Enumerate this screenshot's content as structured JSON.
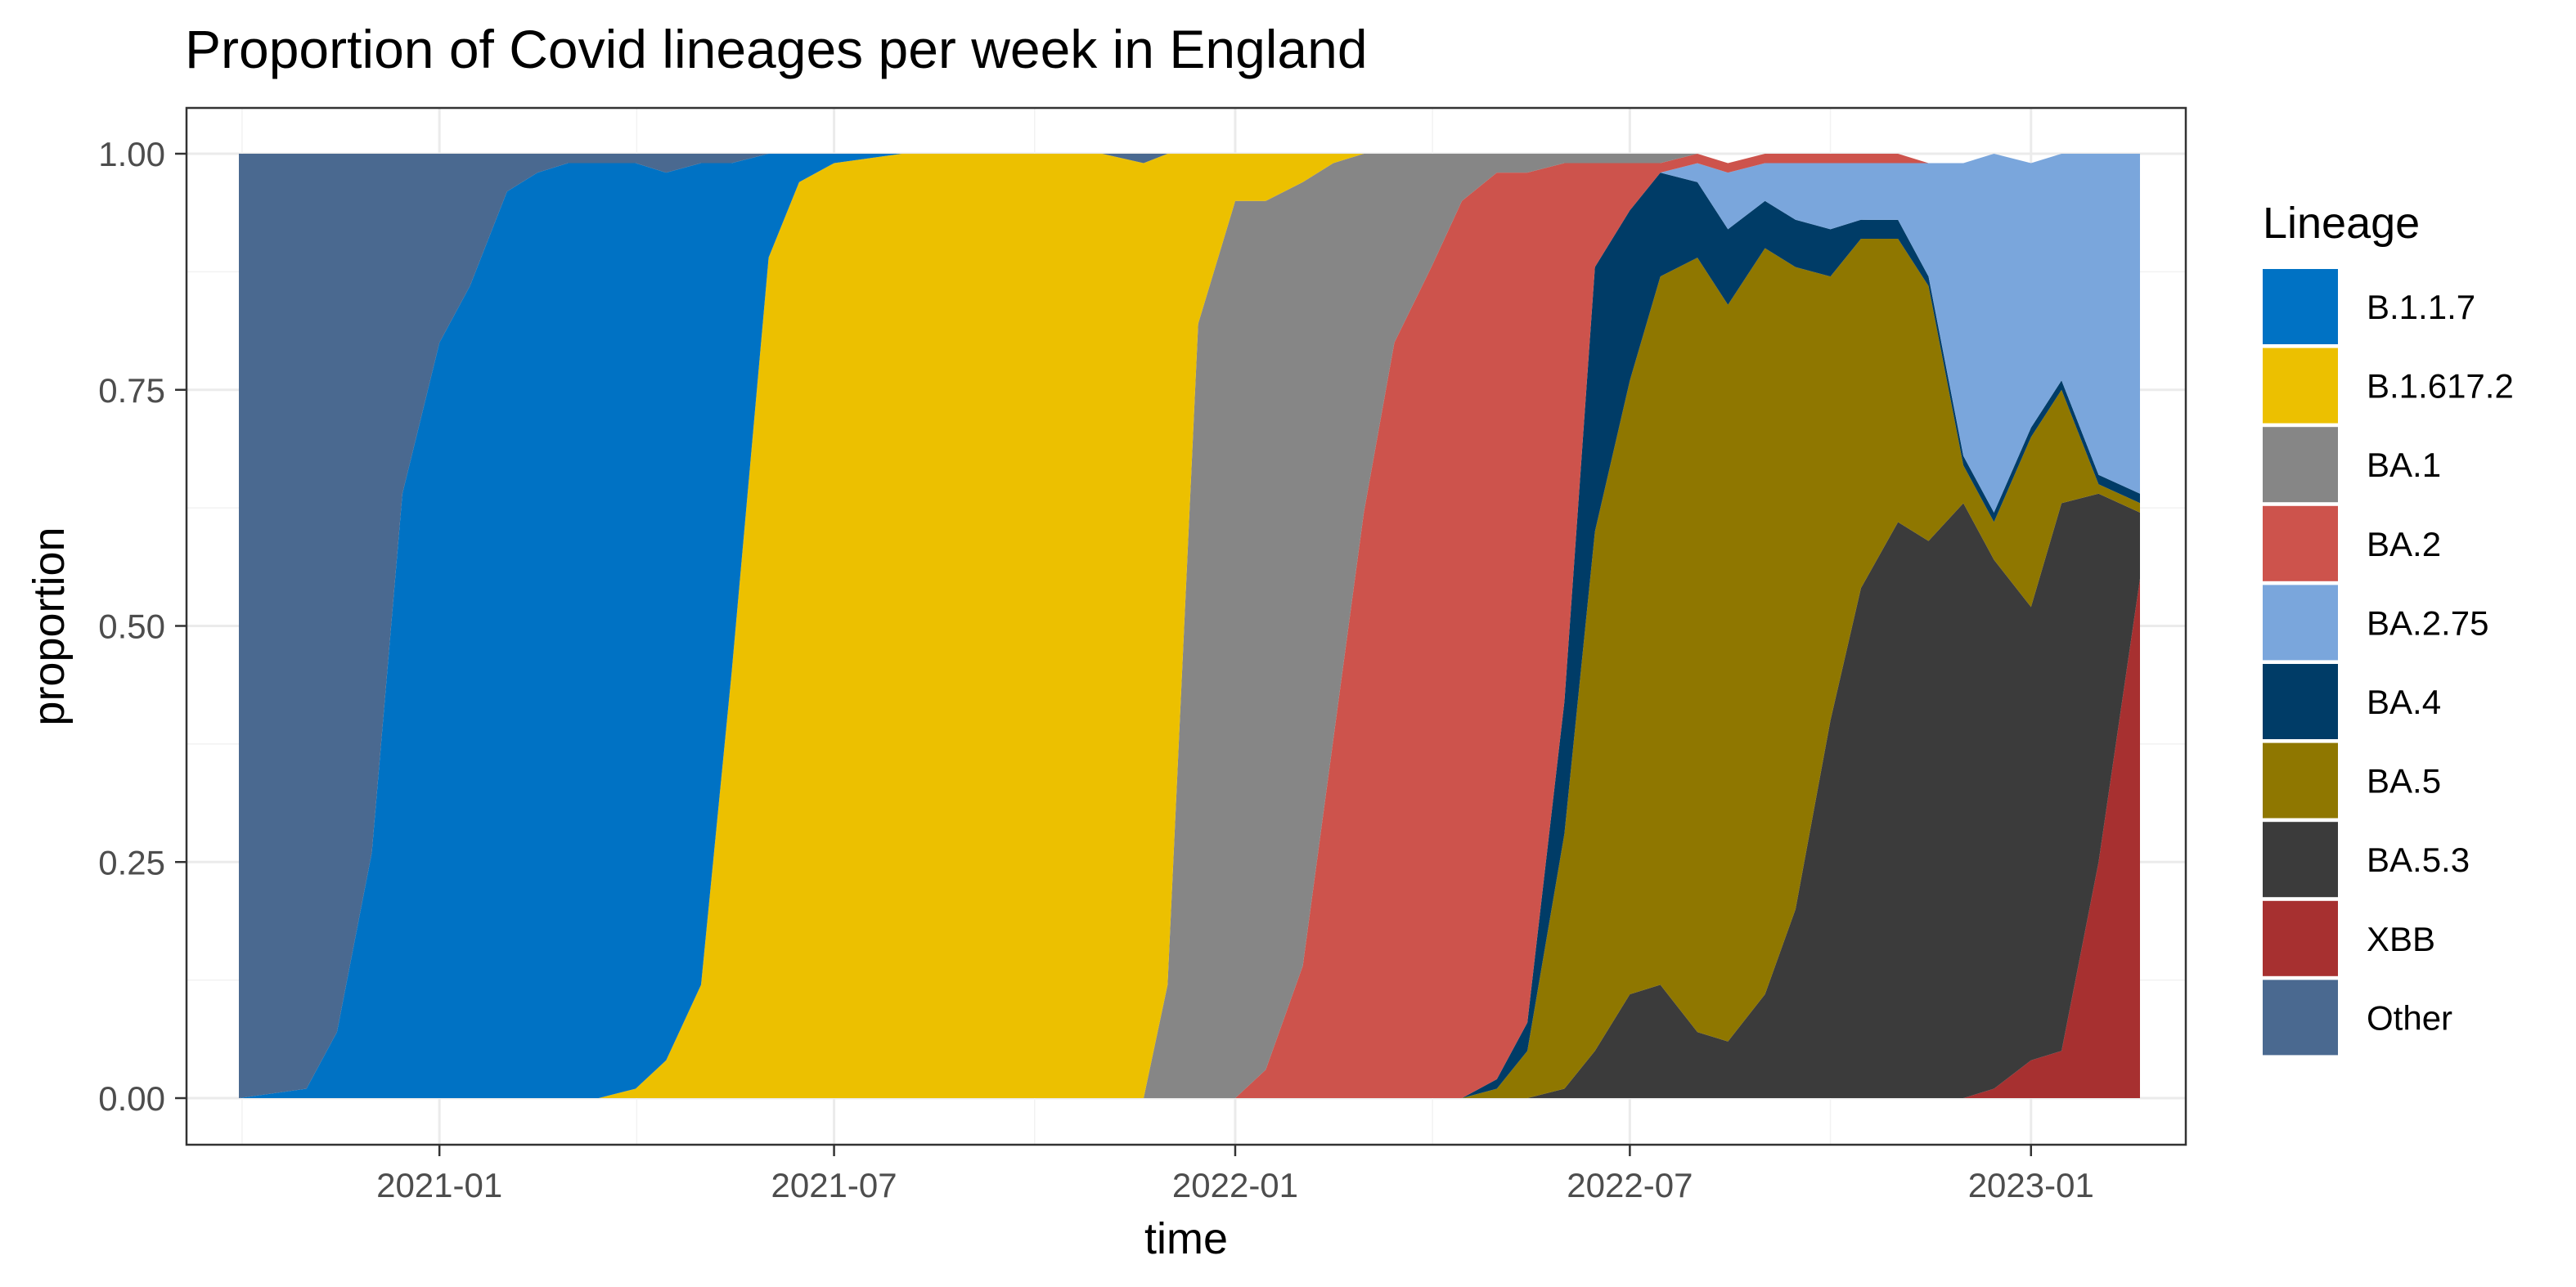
{
  "chart_data": {
    "type": "area",
    "stacked": true,
    "normalized": true,
    "title": "Proportion of Covid lineages per week in England",
    "xlabel": "time",
    "ylabel": "proportion",
    "ylim": [
      0,
      1
    ],
    "xlim": [
      "2020-09-07",
      "2023-03-13"
    ],
    "x_ticks": [
      "2021-01-01",
      "2021-07-01",
      "2022-01-01",
      "2022-07-01",
      "2023-01-01"
    ],
    "x_tick_labels": [
      "2021-01",
      "2021-07",
      "2022-01",
      "2022-07",
      "2023-01"
    ],
    "y_ticks": [
      0,
      0.25,
      0.5,
      0.75,
      1.0
    ],
    "y_tick_labels": [
      "0.00",
      "0.25",
      "0.50",
      "0.75",
      "1.00"
    ],
    "grid": true,
    "legend_title": "Lineage",
    "legend_position": "right",
    "stack_order_bottom_to_top": [
      "XBB",
      "BA.5.3",
      "BA.5",
      "BA.4",
      "BA.2.75",
      "BA.2",
      "BA.1",
      "B.1.617.2",
      "B.1.1.7",
      "Other"
    ],
    "series": [
      {
        "name": "B.1.1.7",
        "color": "#0072c4"
      },
      {
        "name": "B.1.617.2",
        "color": "#ecc000"
      },
      {
        "name": "BA.1",
        "color": "#868686"
      },
      {
        "name": "BA.2",
        "color": "#cd534c"
      },
      {
        "name": "BA.2.75",
        "color": "#7aa6dc"
      },
      {
        "name": "BA.4",
        "color": "#003c67"
      },
      {
        "name": "BA.5",
        "color": "#8f7700"
      },
      {
        "name": "BA.5.3",
        "color": "#3b3b3b"
      },
      {
        "name": "XBB",
        "color": "#a73030"
      },
      {
        "name": "Other",
        "color": "#4a6990"
      }
    ],
    "x": [
      "2020-10-01",
      "2020-11-01",
      "2020-11-15",
      "2020-12-01",
      "2020-12-15",
      "2021-01-01",
      "2021-01-15",
      "2021-02-01",
      "2021-02-15",
      "2021-03-01",
      "2021-03-15",
      "2021-04-01",
      "2021-04-15",
      "2021-05-01",
      "2021-05-15",
      "2021-06-01",
      "2021-06-15",
      "2021-07-01",
      "2021-08-01",
      "2021-09-01",
      "2021-10-01",
      "2021-11-01",
      "2021-11-20",
      "2021-12-01",
      "2021-12-15",
      "2022-01-01",
      "2022-01-15",
      "2022-02-01",
      "2022-02-15",
      "2022-03-01",
      "2022-03-15",
      "2022-04-01",
      "2022-04-15",
      "2022-05-01",
      "2022-05-15",
      "2022-06-01",
      "2022-06-15",
      "2022-07-01",
      "2022-07-15",
      "2022-08-01",
      "2022-08-15",
      "2022-09-01",
      "2022-09-15",
      "2022-10-01",
      "2022-10-15",
      "2022-11-01",
      "2022-11-15",
      "2022-12-01",
      "2022-12-15",
      "2023-01-01",
      "2023-01-15",
      "2023-02-01",
      "2023-02-20"
    ],
    "values": {
      "XBB": [
        0,
        0,
        0,
        0,
        0,
        0,
        0,
        0,
        0,
        0,
        0,
        0,
        0,
        0,
        0,
        0,
        0,
        0,
        0,
        0,
        0,
        0,
        0,
        0,
        0,
        0,
        0,
        0,
        0,
        0,
        0,
        0,
        0,
        0,
        0,
        0,
        0,
        0,
        0,
        0,
        0,
        0,
        0,
        0,
        0,
        0,
        0,
        0,
        0.01,
        0.04,
        0.05,
        0.25,
        0.55
      ],
      "BA.5.3": [
        0,
        0,
        0,
        0,
        0,
        0,
        0,
        0,
        0,
        0,
        0,
        0,
        0,
        0,
        0,
        0,
        0,
        0,
        0,
        0,
        0,
        0,
        0,
        0,
        0,
        0,
        0,
        0,
        0,
        0,
        0,
        0,
        0,
        0,
        0,
        0.01,
        0.05,
        0.11,
        0.12,
        0.07,
        0.06,
        0.11,
        0.2,
        0.4,
        0.54,
        0.61,
        0.59,
        0.63,
        0.56,
        0.48,
        0.58,
        0.39,
        0.07
      ],
      "BA.5": [
        0,
        0,
        0,
        0,
        0,
        0,
        0,
        0,
        0,
        0,
        0,
        0,
        0,
        0,
        0,
        0,
        0,
        0,
        0,
        0,
        0,
        0,
        0,
        0,
        0,
        0,
        0,
        0,
        0,
        0,
        0,
        0,
        0,
        0.01,
        0.05,
        0.27,
        0.55,
        0.65,
        0.75,
        0.82,
        0.78,
        0.79,
        0.68,
        0.47,
        0.37,
        0.3,
        0.27,
        0.04,
        0.04,
        0.18,
        0.12,
        0.01,
        0.01
      ],
      "BA.4": [
        0,
        0,
        0,
        0,
        0,
        0,
        0,
        0,
        0,
        0,
        0,
        0,
        0,
        0,
        0,
        0,
        0,
        0,
        0,
        0,
        0,
        0,
        0,
        0,
        0,
        0,
        0,
        0,
        0,
        0,
        0,
        0,
        0,
        0.01,
        0.03,
        0.14,
        0.28,
        0.18,
        0.11,
        0.08,
        0.08,
        0.05,
        0.05,
        0.05,
        0.02,
        0.02,
        0.01,
        0.01,
        0.01,
        0.01,
        0.01,
        0.01,
        0.01
      ],
      "BA.2.75": [
        0,
        0,
        0,
        0,
        0,
        0,
        0,
        0,
        0,
        0,
        0,
        0,
        0,
        0,
        0,
        0,
        0,
        0,
        0,
        0,
        0,
        0,
        0,
        0,
        0,
        0,
        0,
        0,
        0,
        0,
        0,
        0,
        0,
        0,
        0,
        0,
        0,
        0,
        0,
        0.02,
        0.06,
        0.04,
        0.06,
        0.07,
        0.06,
        0.06,
        0.12,
        0.31,
        0.38,
        0.28,
        0.24,
        0.34,
        0.36
      ],
      "BA.2": [
        0,
        0,
        0,
        0,
        0,
        0,
        0,
        0,
        0,
        0,
        0,
        0,
        0,
        0,
        0,
        0,
        0,
        0,
        0,
        0,
        0,
        0,
        0,
        0,
        0,
        0,
        0.03,
        0.14,
        0.38,
        0.62,
        0.8,
        0.88,
        0.95,
        0.96,
        0.9,
        0.57,
        0.11,
        0.05,
        0.01,
        0.01,
        0.01,
        0.01,
        0.01,
        0.01,
        0.01,
        0.01,
        0,
        0,
        0,
        0,
        0,
        0,
        0
      ],
      "BA.1": [
        0,
        0,
        0,
        0,
        0,
        0,
        0,
        0,
        0,
        0,
        0,
        0,
        0,
        0,
        0,
        0,
        0,
        0,
        0,
        0,
        0,
        0,
        0,
        0.12,
        0.82,
        0.95,
        0.92,
        0.83,
        0.61,
        0.38,
        0.2,
        0.12,
        0.05,
        0.02,
        0.02,
        0.01,
        0.01,
        0.01,
        0.01,
        0,
        0,
        0,
        0,
        0,
        0,
        0,
        0,
        0,
        0,
        0,
        0,
        0,
        0
      ],
      "B.1.617.2": [
        0,
        0,
        0,
        0,
        0,
        0,
        0,
        0,
        0,
        0,
        0,
        0.01,
        0.04,
        0.12,
        0.45,
        0.89,
        0.97,
        0.99,
        1.0,
        1.0,
        1.0,
        1.0,
        0.99,
        0.88,
        0.18,
        0.05,
        0.05,
        0.03,
        0.01,
        0,
        0,
        0,
        0,
        0,
        0,
        0,
        0,
        0,
        0,
        0,
        0,
        0,
        0,
        0,
        0,
        0,
        0,
        0,
        0,
        0,
        0,
        0,
        0
      ],
      "B.1.1.7": [
        0,
        0.01,
        0.07,
        0.26,
        0.64,
        0.8,
        0.86,
        0.96,
        0.98,
        0.99,
        0.99,
        0.98,
        0.94,
        0.87,
        0.54,
        0.11,
        0.03,
        0.01,
        0,
        0,
        0,
        0,
        0,
        0,
        0,
        0,
        0,
        0,
        0,
        0,
        0,
        0,
        0,
        0,
        0,
        0,
        0,
        0,
        0,
        0,
        0,
        0,
        0,
        0,
        0,
        0,
        0,
        0,
        0,
        0,
        0,
        0,
        0
      ],
      "Other": [
        1.0,
        0.99,
        0.93,
        0.74,
        0.36,
        0.2,
        0.14,
        0.04,
        0.02,
        0.01,
        0.01,
        0.01,
        0.02,
        0.01,
        0.01,
        0,
        0,
        0,
        0,
        0,
        0,
        0,
        0.01,
        0,
        0,
        0,
        0,
        0,
        0,
        0,
        0,
        0,
        0,
        0,
        0,
        0,
        0,
        0,
        0,
        0,
        0,
        0,
        0,
        0,
        0,
        0,
        0,
        0,
        0,
        0,
        0,
        0,
        0
      ]
    }
  }
}
